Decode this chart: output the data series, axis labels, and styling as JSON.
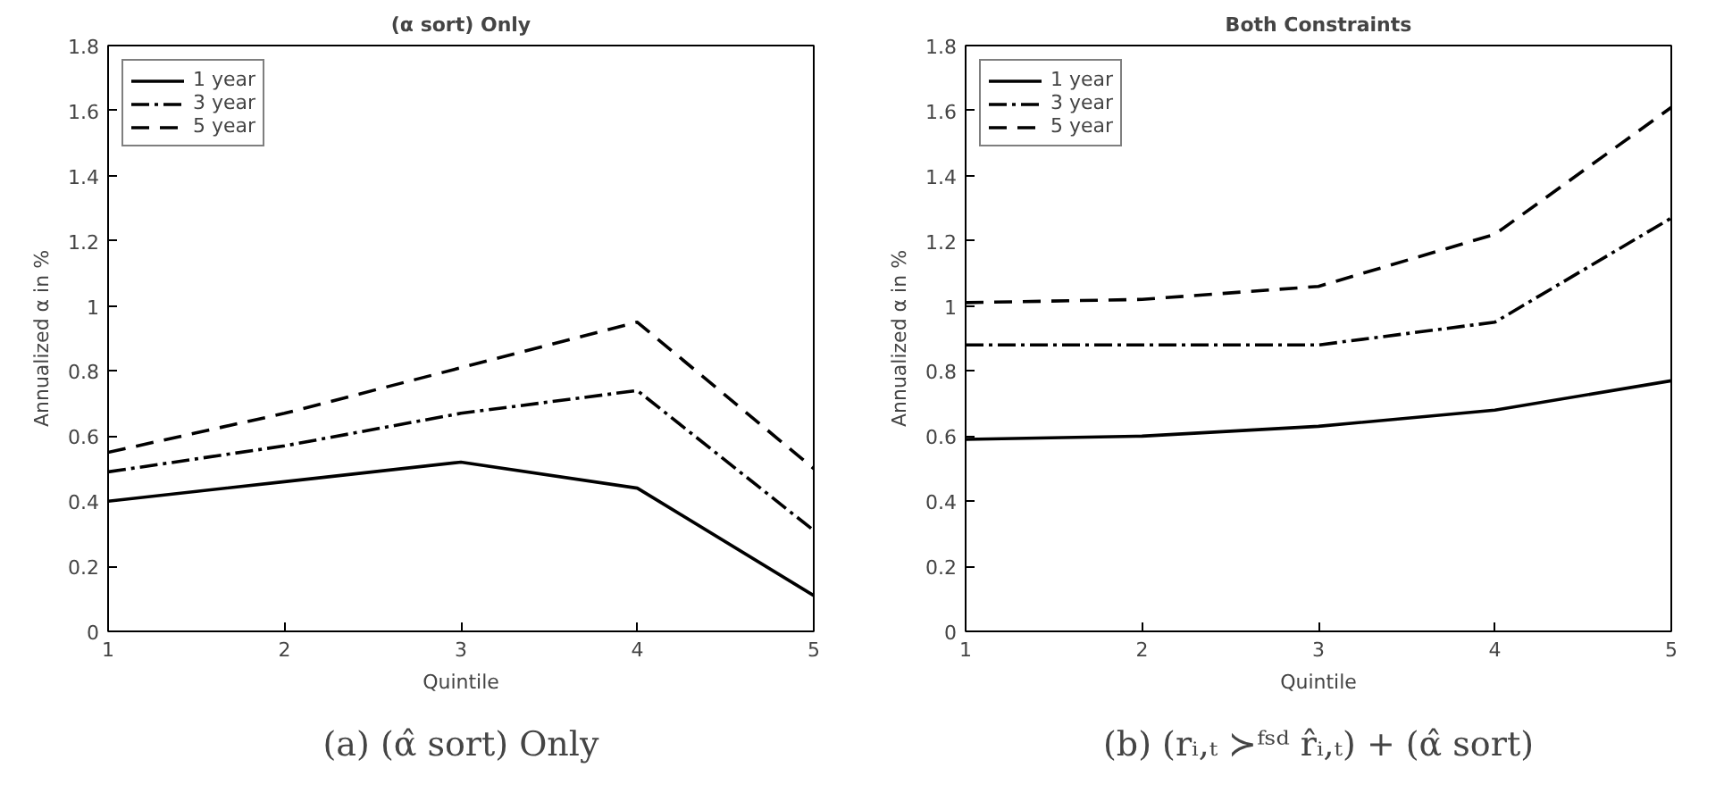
{
  "chart_data": [
    {
      "type": "line",
      "title": "(α sort) Only",
      "xlabel": "Quintile",
      "ylabel": "Annualized α in %",
      "x": [
        1,
        2,
        3,
        4,
        5
      ],
      "xlim": [
        1,
        5
      ],
      "xticks": [
        1,
        2,
        3,
        4,
        5
      ],
      "ylim": [
        0,
        1.8
      ],
      "yticks": [
        0,
        0.2,
        0.4,
        0.6,
        0.8,
        1,
        1.2,
        1.4,
        1.6,
        1.8
      ],
      "grid": false,
      "legend": "top left",
      "marker": "none",
      "series": [
        {
          "name": "1 year",
          "color": "#000000",
          "line_style": "solid",
          "values": [
            0.4,
            0.46,
            0.52,
            0.44,
            0.11
          ]
        },
        {
          "name": "3 year",
          "color": "#000000",
          "line_style": "dashdot",
          "values": [
            0.49,
            0.57,
            0.67,
            0.74,
            0.31
          ]
        },
        {
          "name": "5 year",
          "color": "#000000",
          "line_style": "dashed",
          "values": [
            0.55,
            0.67,
            0.81,
            0.95,
            0.5
          ]
        }
      ],
      "annotations": [
        "(a) (α̂ sort) Only"
      ]
    },
    {
      "type": "line",
      "title": "Both Constraints",
      "xlabel": "Quintile",
      "ylabel": "Annualized α in %",
      "x": [
        1,
        2,
        3,
        4,
        5
      ],
      "xlim": [
        1,
        5
      ],
      "xticks": [
        1,
        2,
        3,
        4,
        5
      ],
      "ylim": [
        0,
        1.8
      ],
      "yticks": [
        0,
        0.2,
        0.4,
        0.6,
        0.8,
        1,
        1.2,
        1.4,
        1.6,
        1.8
      ],
      "grid": false,
      "legend": "top left",
      "marker": "none",
      "series": [
        {
          "name": "1 year",
          "color": "#000000",
          "line_style": "solid",
          "values": [
            0.59,
            0.6,
            0.63,
            0.68,
            0.77
          ]
        },
        {
          "name": "3 year",
          "color": "#000000",
          "line_style": "dashdot",
          "values": [
            0.88,
            0.88,
            0.88,
            0.95,
            1.27
          ]
        },
        {
          "name": "5 year",
          "color": "#000000",
          "line_style": "dashed",
          "values": [
            1.01,
            1.02,
            1.06,
            1.22,
            1.61
          ]
        }
      ],
      "annotations": [
        "(b) (rᵢ,ₜ ≻ᶠˢᵈ r̂ᵢ,ₜ) + (α̂ sort)"
      ]
    }
  ]
}
